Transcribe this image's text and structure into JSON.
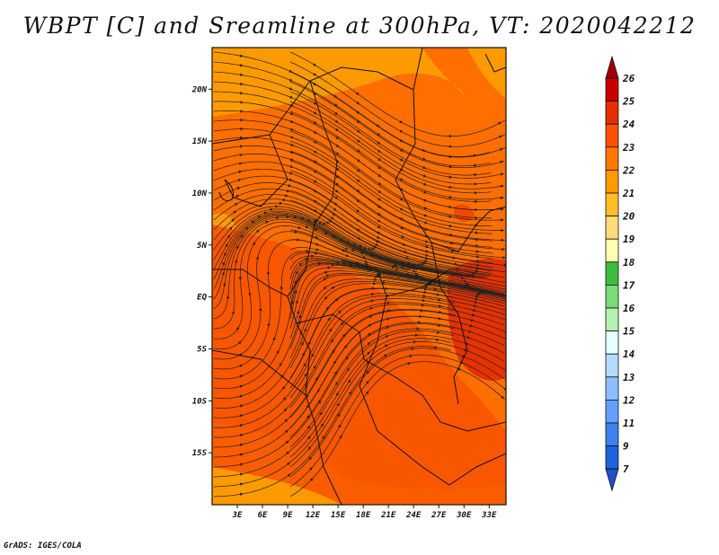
{
  "title": "WBPT [C] and Sreamline at 300hPa, VT: 2020042212",
  "credit": "GrADS: IGES/COLA",
  "map": {
    "lon_range": [
      0,
      35
    ],
    "lat_range": [
      -20,
      24
    ],
    "lat_labels": [
      "20N",
      "15N",
      "10N",
      "5N",
      "EQ",
      "5S",
      "10S",
      "15S"
    ],
    "lat_values": [
      20,
      15,
      10,
      5,
      0,
      -5,
      -10,
      -15
    ],
    "lon_labels": [
      "3E",
      "6E",
      "9E",
      "12E",
      "15E",
      "18E",
      "21E",
      "24E",
      "27E",
      "30E",
      "33E"
    ],
    "lon_values": [
      3,
      6,
      9,
      12,
      15,
      18,
      21,
      24,
      27,
      30,
      33
    ],
    "dominant_fill": "#ff6e00",
    "warm_fill": "#ee2d00",
    "cool_fill": "#fd9a00"
  },
  "colorbar": {
    "labels": [
      "26",
      "25",
      "24",
      "23",
      "22",
      "21",
      "20",
      "19",
      "18",
      "17",
      "16",
      "15",
      "14",
      "13",
      "12",
      "11",
      "9",
      "7"
    ],
    "colors": [
      "#a00000",
      "#c80000",
      "#e62d00",
      "#ff5000",
      "#ff7800",
      "#ff9b00",
      "#ffbe28",
      "#ffdc78",
      "#ffffb4",
      "#3cbe3c",
      "#78dc78",
      "#b4f0b4",
      "#e6ffff",
      "#b4dcff",
      "#8cbeff",
      "#64a0ff",
      "#3c82f0",
      "#1e64dc",
      "#1e50c8"
    ]
  }
}
